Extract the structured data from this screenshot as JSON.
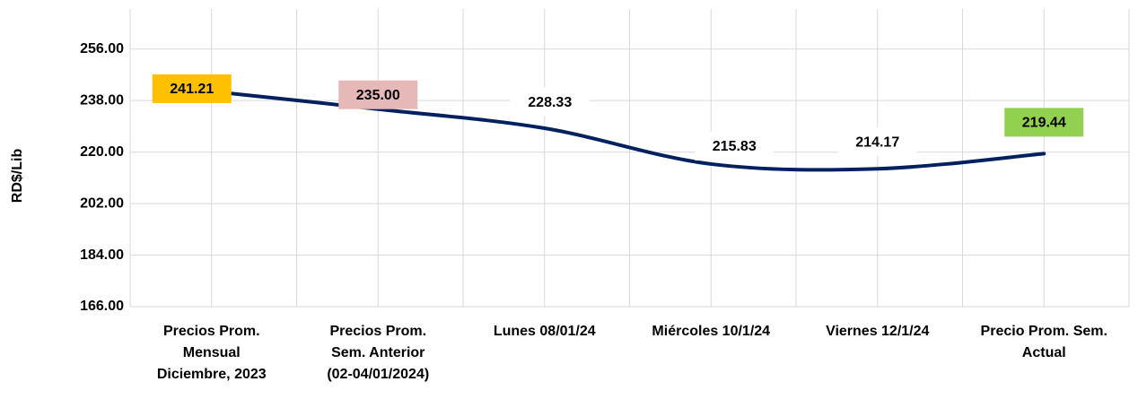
{
  "chart_data": {
    "type": "line",
    "y_label": "RD$/Lib",
    "categories": [
      "Precios Prom.\nMensual\nDiciembre, 2023",
      "Precios Prom.\nSem. Anterior\n(02-04/01/2024)",
      "Lunes  08/01/24",
      "Miércoles 10/1/24",
      "Viernes 12/1/24",
      "Precio Prom. Sem.\nActual"
    ],
    "values": [
      241.21,
      235.0,
      228.33,
      215.83,
      214.17,
      219.44
    ],
    "value_labels": [
      "241.21",
      "235.00",
      "228.33",
      "215.83",
      "214.17",
      "219.44"
    ],
    "color": "#002060",
    "label_colors": [
      "#ffc000",
      "#e6b8b7",
      "#ffffff",
      "#ffffff",
      "#ffffff",
      "#92d050"
    ],
    "ylim": [
      166,
      270
    ],
    "yticks": [
      {
        "value": 166,
        "label": "166.00"
      },
      {
        "value": 184,
        "label": "184.00"
      },
      {
        "value": 202,
        "label": "202.00"
      },
      {
        "value": 220,
        "label": "220.00"
      },
      {
        "value": 238,
        "label": "238.00"
      },
      {
        "value": 256,
        "label": "256.00"
      }
    ],
    "grid": true
  }
}
